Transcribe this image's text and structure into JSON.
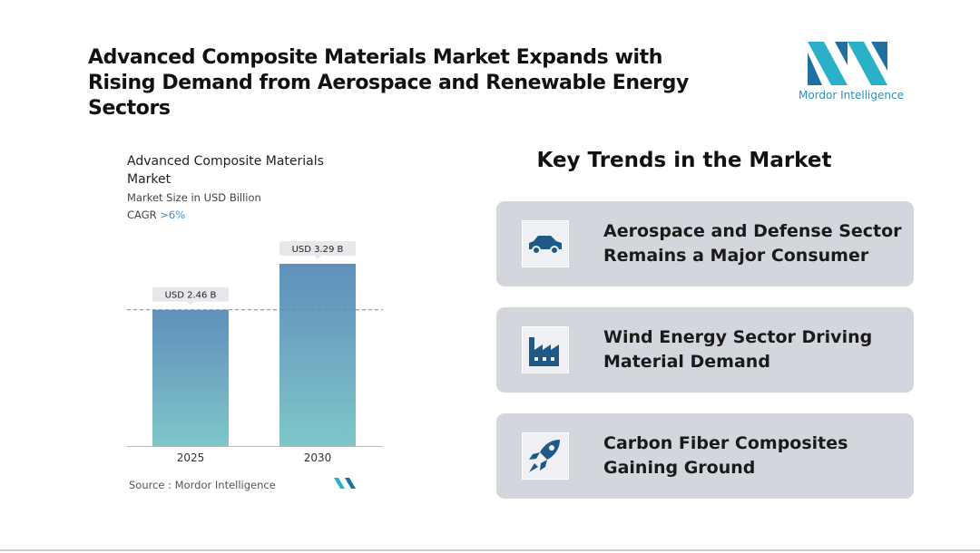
{
  "header": {
    "title": "Advanced Composite Materials Market Expands with Rising Demand from Aerospace and Renewable Energy Sectors"
  },
  "logo": {
    "text": "Mordor Intelligence"
  },
  "chart_data": {
    "type": "bar",
    "title": "Advanced Composite Materials Market",
    "subtitle": "Market Size in USD Billion",
    "cagr_label": "CAGR",
    "cagr_value": ">6%",
    "categories": [
      "2025",
      "2030"
    ],
    "values": [
      2.46,
      3.29
    ],
    "value_labels": [
      "USD 2.46 B",
      "USD 3.29 B"
    ],
    "source": "Source : Mordor Intelligence"
  },
  "trends": {
    "title": "Key Trends in the Market",
    "items": [
      "Aerospace and Defense Sector Remains a Major Consumer",
      "Wind Energy Sector Driving Material Demand",
      "Carbon Fiber Composites Gaining Ground"
    ]
  }
}
